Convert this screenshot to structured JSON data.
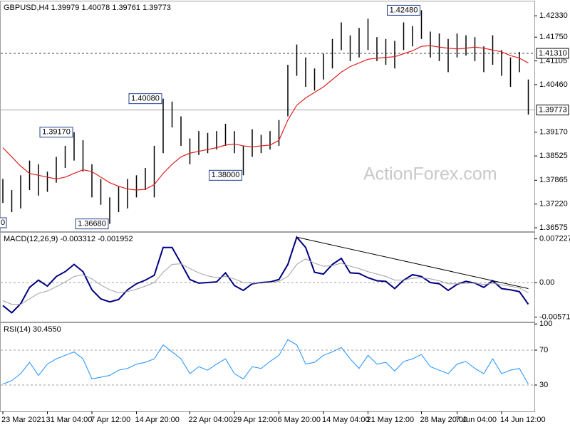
{
  "chart_data": [
    {
      "type": "ohlc",
      "title": "GBPUSD,H4  1.39979 1.40078 1.39761 1.39773",
      "watermark": "ActionForex.com",
      "cut_label": "0",
      "color": "#000000",
      "high": [
        1.379,
        1.376,
        1.38,
        1.384,
        1.383,
        1.381,
        1.385,
        1.388,
        1.3917,
        1.3895,
        1.383,
        1.379,
        1.374,
        1.377,
        1.379,
        1.38,
        1.382,
        1.388,
        1.4008,
        1.4,
        1.396,
        1.39,
        1.392,
        1.3915,
        1.392,
        1.394,
        1.392,
        1.388,
        1.3925,
        1.391,
        1.392,
        1.395,
        1.41,
        1.4155,
        1.412,
        1.409,
        1.413,
        1.417,
        1.4215,
        1.418,
        1.42,
        1.4225,
        1.4175,
        1.417,
        1.4165,
        1.4215,
        1.4205,
        1.4248,
        1.419,
        1.4185,
        1.417,
        1.4185,
        1.418,
        1.4175,
        1.415,
        1.418,
        1.414,
        1.412,
        1.4135,
        1.406
      ],
      "low": [
        1.3725,
        1.37,
        1.371,
        1.376,
        1.3745,
        1.3755,
        1.378,
        1.382,
        1.384,
        1.381,
        1.374,
        1.372,
        1.3668,
        1.37,
        1.371,
        1.374,
        1.376,
        1.374,
        1.386,
        1.393,
        1.388,
        1.383,
        1.3855,
        1.386,
        1.387,
        1.388,
        1.386,
        1.38,
        1.385,
        1.386,
        1.387,
        1.388,
        1.396,
        1.407,
        1.404,
        1.403,
        1.406,
        1.409,
        1.414,
        1.411,
        1.412,
        1.414,
        1.411,
        1.41,
        1.409,
        1.414,
        1.415,
        1.417,
        1.412,
        1.411,
        1.408,
        1.412,
        1.4125,
        1.411,
        1.408,
        1.41,
        1.407,
        1.404,
        1.408,
        1.3965
      ],
      "ma": {
        "color": "#e02020",
        "values": [
          1.3875,
          1.385,
          1.3825,
          1.3805,
          1.38,
          1.3795,
          1.379,
          1.3795,
          1.3805,
          1.3815,
          1.381,
          1.3795,
          1.378,
          1.377,
          1.3763,
          1.376,
          1.3762,
          1.3775,
          1.3805,
          1.383,
          1.385,
          1.386,
          1.3865,
          1.387,
          1.3875,
          1.3882,
          1.3885,
          1.388,
          1.3877,
          1.388,
          1.3882,
          1.3895,
          1.395,
          1.399,
          1.401,
          1.4025,
          1.404,
          1.406,
          1.408,
          1.4095,
          1.4105,
          1.4115,
          1.4118,
          1.412,
          1.4122,
          1.413,
          1.4138,
          1.415,
          1.4152,
          1.4148,
          1.4145,
          1.4143,
          1.4145,
          1.4148,
          1.4145,
          1.414,
          1.4135,
          1.4125,
          1.4118,
          1.4105
        ]
      },
      "ylim": [
        1.3648,
        1.4272
      ],
      "yticks": [
        {
          "value": 1.4233,
          "label": "1.42330"
        },
        {
          "value": 1.4175,
          "label": "1.41750"
        },
        {
          "value": 1.41105,
          "label": "1.41105"
        },
        {
          "value": 1.4046,
          "label": "1.40460"
        },
        {
          "value": 1.3917,
          "label": "1.39170"
        },
        {
          "value": 1.38525,
          "label": "1.38525"
        },
        {
          "value": 1.37865,
          "label": "1.37865"
        },
        {
          "value": 1.3722,
          "label": "1.37220"
        },
        {
          "value": 1.36575,
          "label": "1.36575"
        }
      ],
      "hlines": [
        {
          "value": 1.4131,
          "label": "1.41310",
          "style": "dashed"
        },
        {
          "value": 1.39773,
          "label": "1.39773",
          "style": "solid"
        }
      ],
      "annotations": [
        {
          "value": 1.4248,
          "label": "1.42480",
          "index": 47
        },
        {
          "value": 1.4008,
          "label": "1.40080",
          "index": 18
        },
        {
          "value": 1.3917,
          "label": "1.39170",
          "index": 8
        },
        {
          "value": 1.38,
          "label": "1.38000",
          "index": 27
        },
        {
          "value": 1.3668,
          "label": "1.36680",
          "index": 12
        }
      ]
    },
    {
      "type": "line",
      "title": "MACD(12,26,9) -0.003312 -0.001952",
      "series": [
        {
          "color": "#000080",
          "width": 2,
          "values": [
            -0.0038,
            -0.005,
            -0.0035,
            -0.0008,
            0.0004,
            -0.0006,
            0.001,
            0.0018,
            0.003,
            0.0018,
            -0.0012,
            -0.0027,
            -0.0032,
            -0.0028,
            -0.0012,
            -0.0002,
            0.0004,
            0.0012,
            0.0058,
            0.0058,
            0.0032,
            0.0005,
            -0.0001,
            0.0,
            0.0001,
            0.0016,
            -0.0005,
            -0.0013,
            -0.0002,
            0.0,
            0.0001,
            0.0005,
            0.003,
            0.0075,
            0.0058,
            0.0017,
            0.0014,
            0.003,
            0.004,
            0.0016,
            0.0015,
            0.0008,
            0.0003,
            0.0002,
            -0.001,
            0.0004,
            0.0013,
            0.001,
            0.0,
            -0.0002,
            -0.0013,
            -0.0003,
            0.0002,
            -0.0001,
            -0.0008,
            0.0003,
            -0.001,
            -0.0012,
            -0.0015,
            -0.0036
          ]
        },
        {
          "color": "#a0a0a0",
          "width": 1,
          "values": [
            -0.003,
            -0.0036,
            -0.0036,
            -0.0027,
            -0.0018,
            -0.0014,
            -0.0007,
            0.0001,
            0.001,
            0.0013,
            0.0006,
            -0.0004,
            -0.0012,
            -0.0017,
            -0.0015,
            -0.0011,
            -0.0006,
            0.0,
            0.0017,
            0.003,
            0.0031,
            0.0023,
            0.0016,
            0.0011,
            0.0008,
            0.001,
            0.0006,
            0.0,
            -0.0001,
            -0.0001,
            0.0,
            0.0002,
            0.001,
            0.003,
            0.0039,
            0.0032,
            0.0027,
            0.0028,
            0.0032,
            0.0027,
            0.0023,
            0.0018,
            0.0014,
            0.001,
            0.0004,
            0.0004,
            0.0007,
            0.0008,
            0.0006,
            0.0003,
            -0.0002,
            -0.0002,
            -0.0001,
            -0.0001,
            -0.0003,
            -0.0001,
            -0.0004,
            -0.0006,
            -0.0009,
            -0.0017
          ]
        }
      ],
      "ylim": [
        -0.00647,
        0.00824
      ],
      "yticks": [
        0.007227,
        {
          "value": 0,
          "label": "0.00"
        },
        -0.005714
      ],
      "levels": [
        0
      ],
      "trendline": {
        "x": [
          33,
          59
        ],
        "y": [
          0.0075,
          -0.001
        ]
      }
    },
    {
      "type": "line",
      "title": "RSI(14) 30.4550",
      "categories": [
        "23 Mar 2021",
        null,
        null,
        null,
        null,
        "31 Mar 04:00",
        null,
        null,
        null,
        null,
        "7 Apr 12:00",
        null,
        null,
        null,
        null,
        "14 Apr 20:00",
        null,
        null,
        null,
        null,
        null,
        "22 Apr 04:00",
        null,
        null,
        null,
        null,
        "29 Apr 12:00",
        null,
        null,
        null,
        null,
        "6 May 20:00",
        null,
        null,
        null,
        null,
        "14 May 04:00",
        null,
        null,
        null,
        null,
        "21 May 12:00",
        null,
        null,
        null,
        null,
        null,
        "28 May 20:00",
        null,
        null,
        null,
        "7 Jun 04:00",
        null,
        null,
        null,
        null,
        "14 Jun 12:00",
        null,
        null,
        null
      ],
      "series": [
        {
          "color": "#1e90ff",
          "width": 1,
          "values": [
            31,
            35,
            43,
            56,
            41,
            54,
            60,
            64,
            68,
            60,
            37,
            39,
            41,
            47,
            49,
            54,
            56,
            60,
            76,
            68,
            60,
            43,
            51,
            47,
            54,
            60,
            43,
            37,
            51,
            49,
            57,
            64,
            82,
            76,
            54,
            56,
            64,
            68,
            73,
            60,
            49,
            64,
            54,
            56,
            46,
            57,
            60,
            65,
            51,
            47,
            43,
            54,
            57,
            49,
            43,
            60,
            43,
            47,
            49,
            31
          ]
        }
      ],
      "ylim": [
        -0.2,
        101
      ],
      "yticks": [
        100,
        70,
        30
      ],
      "levels": [
        70,
        30
      ]
    }
  ]
}
